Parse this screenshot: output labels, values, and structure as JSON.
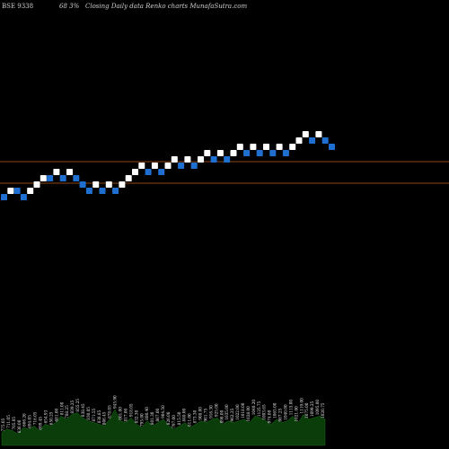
{
  "header": {
    "symbol": "BSE 9338",
    "change": "68  3%",
    "caption": "Closing Daily data  Renko  charts MunafaSutra.com"
  },
  "colors": {
    "background": "#000000",
    "up_brick": "#ffffff",
    "down_brick": "#1f6fd1",
    "level_line": "#b8621e",
    "volume": "#0b3d0b"
  },
  "chart_data": {
    "type": "renko",
    "title": "",
    "ylabel": "",
    "level_lines": [
      "upper",
      "lower"
    ],
    "bricks": [
      {
        "level": 0,
        "dir": "down"
      },
      {
        "level": 1,
        "dir": "up"
      },
      {
        "level": 1,
        "dir": "down"
      },
      {
        "level": 0,
        "dir": "down"
      },
      {
        "level": 1,
        "dir": "up"
      },
      {
        "level": 2,
        "dir": "up"
      },
      {
        "level": 3,
        "dir": "up"
      },
      {
        "level": 3,
        "dir": "down"
      },
      {
        "level": 4,
        "dir": "up"
      },
      {
        "level": 3,
        "dir": "down"
      },
      {
        "level": 4,
        "dir": "up"
      },
      {
        "level": 3,
        "dir": "down"
      },
      {
        "level": 2,
        "dir": "down"
      },
      {
        "level": 1,
        "dir": "down"
      },
      {
        "level": 2,
        "dir": "up"
      },
      {
        "level": 1,
        "dir": "down"
      },
      {
        "level": 2,
        "dir": "up"
      },
      {
        "level": 1,
        "dir": "down"
      },
      {
        "level": 2,
        "dir": "up"
      },
      {
        "level": 3,
        "dir": "up"
      },
      {
        "level": 4,
        "dir": "up"
      },
      {
        "level": 5,
        "dir": "up"
      },
      {
        "level": 4,
        "dir": "down"
      },
      {
        "level": 5,
        "dir": "up"
      },
      {
        "level": 4,
        "dir": "down"
      },
      {
        "level": 5,
        "dir": "up"
      },
      {
        "level": 6,
        "dir": "up"
      },
      {
        "level": 5,
        "dir": "down"
      },
      {
        "level": 6,
        "dir": "up"
      },
      {
        "level": 5,
        "dir": "down"
      },
      {
        "level": 6,
        "dir": "up"
      },
      {
        "level": 7,
        "dir": "up"
      },
      {
        "level": 6,
        "dir": "down"
      },
      {
        "level": 7,
        "dir": "up"
      },
      {
        "level": 6,
        "dir": "down"
      },
      {
        "level": 7,
        "dir": "up"
      },
      {
        "level": 8,
        "dir": "up"
      },
      {
        "level": 7,
        "dir": "down"
      },
      {
        "level": 8,
        "dir": "up"
      },
      {
        "level": 7,
        "dir": "down"
      },
      {
        "level": 8,
        "dir": "up"
      },
      {
        "level": 7,
        "dir": "down"
      },
      {
        "level": 8,
        "dir": "up"
      },
      {
        "level": 7,
        "dir": "down"
      },
      {
        "level": 8,
        "dir": "up"
      },
      {
        "level": 9,
        "dir": "up"
      },
      {
        "level": 10,
        "dir": "up"
      },
      {
        "level": 9,
        "dir": "down"
      },
      {
        "level": 10,
        "dir": "up"
      },
      {
        "level": 9,
        "dir": "down"
      },
      {
        "level": 8,
        "dir": "down"
      }
    ],
    "volume_labels": [
      "775.05",
      "711.05",
      "705.05",
      "630.00",
      "666.26",
      "694.05",
      "716.05",
      "699.45",
      "654.93",
      "650.25",
      "681.00",
      "811.00",
      "788.25",
      "839.25",
      "855.25",
      "838.45",
      "830.05",
      "871.55",
      "838.85",
      "806.45",
      "878.05",
      "945.90",
      "801.00",
      "817.00",
      "918.05",
      "832.30",
      "795.00",
      "880.40",
      "801.30",
      "867.00",
      "904.50",
      "826.00",
      "797.00",
      "815.50",
      "840.00",
      "811.00",
      "873.30",
      "908.00",
      "901.75",
      "916.30",
      "925.00",
      "898.00",
      "1035.00",
      "962.25",
      "1022.00",
      "1018.00",
      "1028.00",
      "1040.20",
      "1125.75",
      "1003.65",
      "974.00",
      "1065.00",
      "987.25",
      "1040.00",
      "1115.00",
      "1021.00",
      "1119.00",
      "1075.00",
      "1099.25",
      "1095.00",
      "1020.75"
    ],
    "volumes": [
      8,
      10,
      9,
      7,
      11,
      10,
      12,
      9,
      13,
      12,
      14,
      18,
      16,
      19,
      20,
      17,
      15,
      14,
      13,
      12,
      16,
      22,
      15,
      14,
      17,
      13,
      11,
      15,
      12,
      14,
      16,
      12,
      10,
      12,
      14,
      11,
      13,
      15,
      14,
      16,
      17,
      13,
      15,
      14,
      15,
      16,
      14,
      18,
      17,
      15,
      13,
      16,
      14,
      15,
      18,
      14,
      19,
      16,
      17,
      18,
      16
    ]
  }
}
